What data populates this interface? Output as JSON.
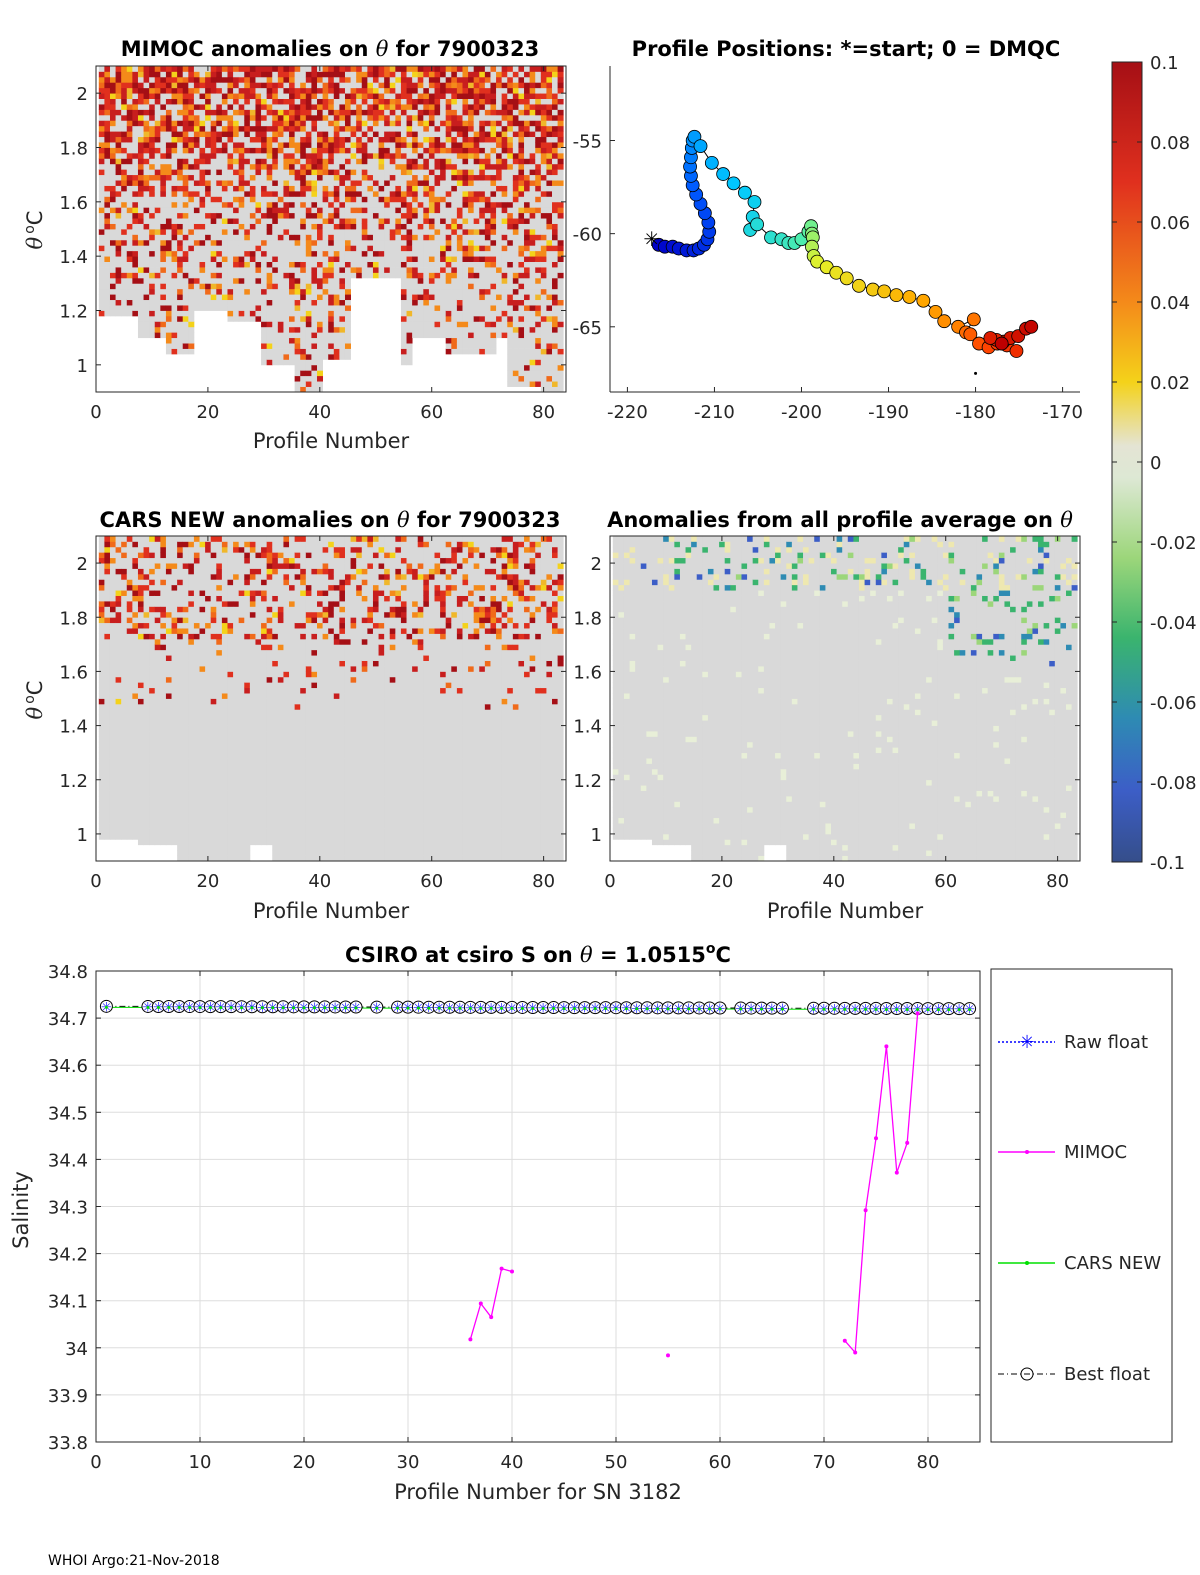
{
  "footer": "WHOI Argo:21-Nov-2018",
  "colors": {
    "background": "#ffffff",
    "anomaly_gray": "#d9d9d9",
    "axis": "#262626",
    "mimoc_line": "#ff00ff",
    "cars_line": "#00e000",
    "raw_marker": "#0000ff"
  },
  "colorbar": {
    "min": -0.1,
    "max": 0.1,
    "ticks": [
      0.1,
      0.08,
      0.06,
      0.04,
      0.02,
      0,
      -0.02,
      -0.04,
      -0.06,
      -0.08,
      -0.1
    ],
    "tick_labels": [
      "0.1",
      "0.08",
      "0.06",
      "0.04",
      "0.02",
      "0",
      "-0.02",
      "-0.04",
      "-0.06",
      "-0.08",
      "-0.1"
    ]
  },
  "chart_data": [
    {
      "id": "mimoc",
      "type": "heatmap",
      "title_prefix": "MIMOC anomalies on ",
      "title_suffix": "  for 7900323",
      "title_symbol": "θ",
      "xlabel": "Profile Number",
      "ylabel": "θ °C",
      "ylabel_parts": [
        "θ",
        "o",
        "C"
      ],
      "xlim": [
        0,
        84
      ],
      "ylim": [
        0.9,
        2.1
      ],
      "xticks": [
        0,
        20,
        40,
        60,
        80
      ],
      "xtick_labels": [
        "0",
        "20",
        "40",
        "60",
        "80"
      ],
      "yticks": [
        1,
        1.2,
        1.4,
        1.6,
        1.8,
        2
      ],
      "ytick_labels": [
        "1",
        "1.2",
        "1.4",
        "1.6",
        "1.8",
        "2"
      ],
      "dominant_sign": "positive",
      "density": 0.55,
      "floor_segments": [
        [
          0,
          1.18
        ],
        [
          8,
          1.1
        ],
        [
          13,
          1.04
        ],
        [
          18,
          1.2
        ],
        [
          24,
          1.15
        ],
        [
          30,
          1.0
        ],
        [
          36,
          0.9
        ],
        [
          41,
          1.02
        ],
        [
          46,
          1.32
        ],
        [
          55,
          1.0
        ],
        [
          57,
          1.1
        ],
        [
          63,
          1.03
        ],
        [
          72,
          1.1
        ],
        [
          74,
          0.92
        ],
        [
          80,
          0.9
        ],
        [
          84,
          0.9
        ]
      ]
    },
    {
      "id": "positions",
      "type": "scatter",
      "title": "Profile Positions: *=start; 0 = DMQC",
      "xlim": [
        -222,
        -168
      ],
      "ylim": [
        -68.5,
        -51
      ],
      "xticks": [
        -220,
        -210,
        -200,
        -190,
        -180,
        -170
      ],
      "xtick_labels": [
        "-220",
        "-210",
        "-200",
        "-190",
        "-180",
        "-170"
      ],
      "yticks": [
        -55,
        -60,
        -65
      ],
      "ytick_labels": [
        "-55",
        "-60",
        "-65"
      ],
      "start": [
        -217.2,
        -60.3
      ],
      "extra_point": [
        -180,
        -67.5
      ],
      "track": [
        [
          -216.4,
          -60.6
        ],
        [
          -215.7,
          -60.7
        ],
        [
          -214.8,
          -60.7
        ],
        [
          -214.1,
          -60.8
        ],
        [
          -213.2,
          -60.9
        ],
        [
          -212.4,
          -60.9
        ],
        [
          -211.8,
          -60.8
        ],
        [
          -211.2,
          -60.6
        ],
        [
          -210.8,
          -60.3
        ],
        [
          -210.6,
          -59.9
        ],
        [
          -210.7,
          -59.4
        ],
        [
          -211.1,
          -58.9
        ],
        [
          -211.6,
          -58.4
        ],
        [
          -212.1,
          -57.9
        ],
        [
          -212.5,
          -57.4
        ],
        [
          -212.7,
          -56.9
        ],
        [
          -212.8,
          -56.4
        ],
        [
          -212.7,
          -55.9
        ],
        [
          -212.6,
          -55.4
        ],
        [
          -212.5,
          -55.0
        ],
        [
          -212.3,
          -54.8
        ],
        [
          -211.6,
          -55.3
        ],
        [
          -210.3,
          -56.2
        ],
        [
          -209.0,
          -56.8
        ],
        [
          -207.8,
          -57.3
        ],
        [
          -206.5,
          -57.8
        ],
        [
          -205.4,
          -58.3
        ],
        [
          -205.6,
          -59.1
        ],
        [
          -205.9,
          -59.8
        ],
        [
          -205.1,
          -59.5
        ],
        [
          -203.5,
          -60.2
        ],
        [
          -202.3,
          -60.3
        ],
        [
          -201.5,
          -60.5
        ],
        [
          -200.8,
          -60.5
        ],
        [
          -200.0,
          -60.3
        ],
        [
          -199.2,
          -59.9
        ],
        [
          -198.9,
          -59.6
        ],
        [
          -198.8,
          -60.0
        ],
        [
          -198.7,
          -60.2
        ],
        [
          -198.8,
          -60.7
        ],
        [
          -198.6,
          -61.2
        ],
        [
          -198.2,
          -61.5
        ],
        [
          -197.1,
          -61.8
        ],
        [
          -196.0,
          -62.1
        ],
        [
          -194.8,
          -62.4
        ],
        [
          -193.4,
          -62.8
        ],
        [
          -191.8,
          -63.0
        ],
        [
          -190.5,
          -63.1
        ],
        [
          -189.1,
          -63.3
        ],
        [
          -187.6,
          -63.4
        ],
        [
          -186.0,
          -63.6
        ],
        [
          -184.6,
          -64.2
        ],
        [
          -183.6,
          -64.7
        ],
        [
          -182.0,
          -65.0
        ],
        [
          -180.2,
          -64.6
        ],
        [
          -181.1,
          -65.3
        ],
        [
          -180.6,
          -65.4
        ],
        [
          -179.6,
          -65.9
        ],
        [
          -178.5,
          -66.1
        ],
        [
          -177.5,
          -65.9
        ],
        [
          -176.4,
          -66.0
        ],
        [
          -175.3,
          -66.3
        ],
        [
          -176.8,
          -65.8
        ],
        [
          -177.6,
          -65.7
        ],
        [
          -178.3,
          -65.6
        ],
        [
          -176.0,
          -65.6
        ],
        [
          -175.1,
          -65.5
        ],
        [
          -174.2,
          -65.1
        ],
        [
          -173.6,
          -65.0
        ],
        [
          -177.0,
          -65.9
        ]
      ]
    },
    {
      "id": "cars",
      "type": "heatmap",
      "title_prefix": "CARS NEW anomalies on ",
      "title_suffix": " for 7900323",
      "title_symbol": "θ",
      "xlabel": "",
      "ylabel": "θ °C",
      "ylabel_parts": [
        "θ",
        "o",
        "C"
      ],
      "xlim": [
        0,
        84
      ],
      "ylim": [
        0.9,
        2.1
      ],
      "xticks": [
        0,
        20,
        40,
        60,
        80
      ],
      "xtick_labels": [
        "0",
        "20",
        "40",
        "60",
        "80"
      ],
      "yticks": [
        1,
        1.2,
        1.4,
        1.6,
        1.8,
        2
      ],
      "ytick_labels": [
        "1",
        "1.2",
        "1.4",
        "1.6",
        "1.8",
        "2"
      ],
      "dominant_sign": "positive",
      "density": 0.25,
      "floor_segments": [
        [
          0,
          0.98
        ],
        [
          8,
          0.95
        ],
        [
          15,
          0.9
        ],
        [
          28,
          0.95
        ],
        [
          32,
          0.9
        ],
        [
          84,
          0.9
        ]
      ]
    },
    {
      "id": "average",
      "type": "heatmap",
      "title_prefix": "Anomalies from all profile average on ",
      "title_suffix": "",
      "title_symbol": "θ",
      "xlabel": "Profile Number",
      "ylabel": "",
      "xlim": [
        0,
        84
      ],
      "ylim": [
        0.9,
        2.1
      ],
      "xticks": [
        0,
        20,
        40,
        60,
        80
      ],
      "xtick_labels": [
        "0",
        "20",
        "40",
        "60",
        "80"
      ],
      "yticks": [
        1,
        1.2,
        1.4,
        1.6,
        1.8,
        2
      ],
      "ytick_labels": [
        "1",
        "1.2",
        "1.4",
        "1.6",
        "1.8",
        "2"
      ],
      "dominant_sign": "mixed",
      "density": 0.06,
      "floor_segments": [
        [
          0,
          0.98
        ],
        [
          8,
          0.95
        ],
        [
          15,
          0.9
        ],
        [
          28,
          0.95
        ],
        [
          32,
          0.9
        ],
        [
          84,
          0.9
        ]
      ]
    },
    {
      "id": "salinity",
      "type": "line",
      "title_prefix": "CSIRO at csiro S on ",
      "title_symbol": "θ",
      "title_value": " = 1.0515",
      "title_deg": "o",
      "title_unit": "C",
      "xlabel": "Profile Number for SN 3182",
      "ylabel": "Salinity",
      "xlim": [
        0,
        85
      ],
      "ylim": [
        33.8,
        34.8
      ],
      "xticks": [
        0,
        10,
        20,
        30,
        40,
        50,
        60,
        70,
        80
      ],
      "xtick_labels": [
        "0",
        "10",
        "20",
        "30",
        "40",
        "50",
        "60",
        "70",
        "80"
      ],
      "yticks": [
        33.8,
        33.9,
        34,
        34.1,
        34.2,
        34.3,
        34.4,
        34.5,
        34.6,
        34.7,
        34.8
      ],
      "ytick_labels": [
        "33.8",
        "33.9",
        "34",
        "34.1",
        "34.2",
        "34.3",
        "34.4",
        "34.5",
        "34.6",
        "34.7",
        "34.8"
      ],
      "grid": true,
      "legend": [
        "Raw float",
        "MIMOC",
        "CARS NEW",
        "Best float"
      ],
      "series": [
        {
          "name": "Raw float",
          "x": [
            1,
            5,
            6,
            7,
            8,
            9,
            10,
            11,
            12,
            13,
            14,
            15,
            16,
            17,
            18,
            19,
            20,
            21,
            22,
            23,
            24,
            25,
            27,
            29,
            30,
            31,
            32,
            33,
            34,
            35,
            36,
            37,
            38,
            39,
            40,
            41,
            42,
            43,
            44,
            45,
            46,
            47,
            48,
            49,
            50,
            51,
            52,
            53,
            54,
            55,
            56,
            57,
            58,
            59,
            60,
            62,
            63,
            64,
            65,
            66,
            69,
            70,
            71,
            72,
            73,
            74,
            75,
            76,
            77,
            78,
            79,
            80,
            81,
            82,
            83,
            84
          ],
          "y_start": 34.725,
          "y_end": 34.72
        },
        {
          "name": "MIMOC",
          "segments": [
            {
              "x": [
                36,
                37,
                38,
                39,
                40
              ],
              "y": [
                34.018,
                34.094,
                34.065,
                34.168,
                34.162
              ]
            },
            {
              "x": [
                55
              ],
              "y": [
                33.984
              ]
            },
            {
              "x": [
                72,
                73,
                74,
                75,
                76,
                77,
                78,
                79
              ],
              "y": [
                34.015,
                33.99,
                34.292,
                34.445,
                34.64,
                34.372,
                34.435,
                34.71
              ]
            }
          ]
        },
        {
          "name": "CARS NEW",
          "x_start": 1,
          "x_end": 84,
          "y_start": 34.725,
          "y_end": 34.72
        },
        {
          "name": "Best float",
          "x_start": 1,
          "x_end": 84,
          "y_start": 34.725,
          "y_end": 34.72
        }
      ]
    }
  ]
}
